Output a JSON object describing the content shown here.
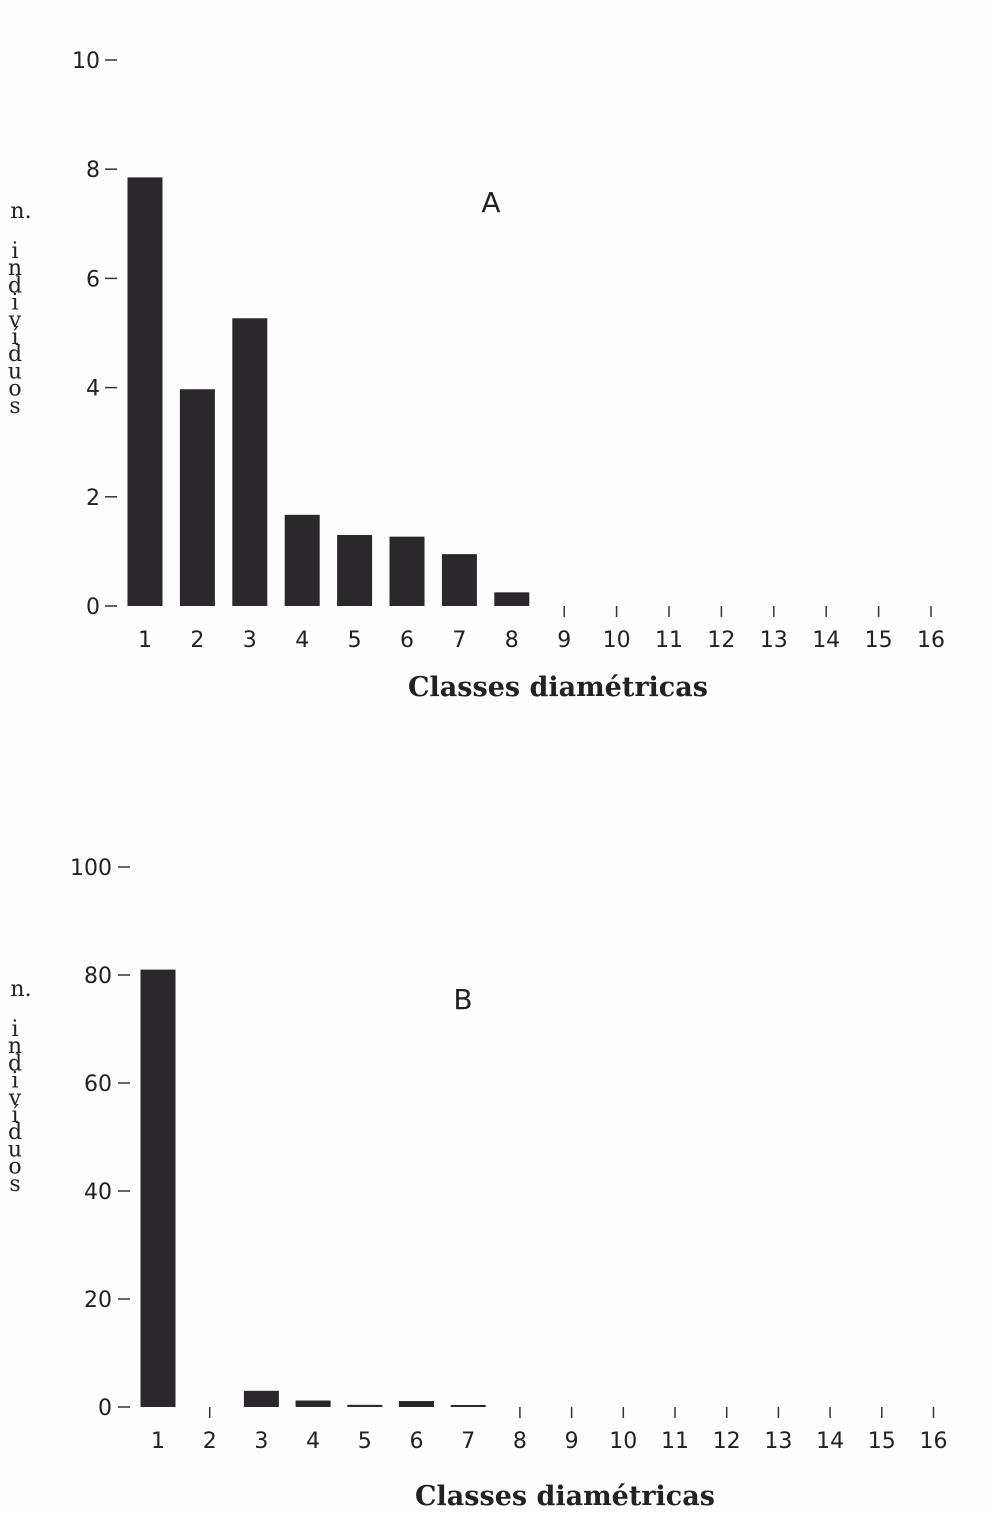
{
  "chart_data": [
    {
      "type": "bar",
      "panel_label": "A",
      "categories": [
        "1",
        "2",
        "3",
        "4",
        "5",
        "6",
        "7",
        "8",
        "9",
        "10",
        "11",
        "12",
        "13",
        "14",
        "15",
        "16"
      ],
      "values": [
        7.85,
        3.97,
        5.27,
        1.67,
        1.3,
        1.27,
        0.95,
        0.25,
        0,
        0,
        0,
        0,
        0,
        0,
        0,
        0
      ],
      "yticks": [
        0,
        2,
        4,
        6,
        8,
        10
      ],
      "ylim": [
        0,
        10
      ],
      "xlabel": "Classes diamétricas",
      "ylabel_lines": [
        "n.",
        "i",
        "n",
        "d",
        "i",
        "v",
        "í",
        "d",
        "u",
        "o",
        "s"
      ],
      "grid": false,
      "bar_color": "#2b282b"
    },
    {
      "type": "bar",
      "panel_label": "B",
      "categories": [
        "1",
        "2",
        "3",
        "4",
        "5",
        "6",
        "7",
        "8",
        "9",
        "10",
        "11",
        "12",
        "13",
        "14",
        "15",
        "16"
      ],
      "values": [
        81,
        0,
        3,
        1.2,
        0.4,
        1.1,
        0.3,
        0,
        0,
        0,
        0,
        0,
        0,
        0,
        0,
        0
      ],
      "yticks": [
        0,
        20,
        40,
        60,
        80,
        100
      ],
      "ylim": [
        0,
        100
      ],
      "xlabel": "Classes diamétricas",
      "ylabel_lines": [
        "n.",
        "i",
        "n",
        "d",
        "i",
        "v",
        "í",
        "d",
        "u",
        "o",
        "s"
      ],
      "grid": false,
      "bar_color": "#2b282b"
    }
  ]
}
